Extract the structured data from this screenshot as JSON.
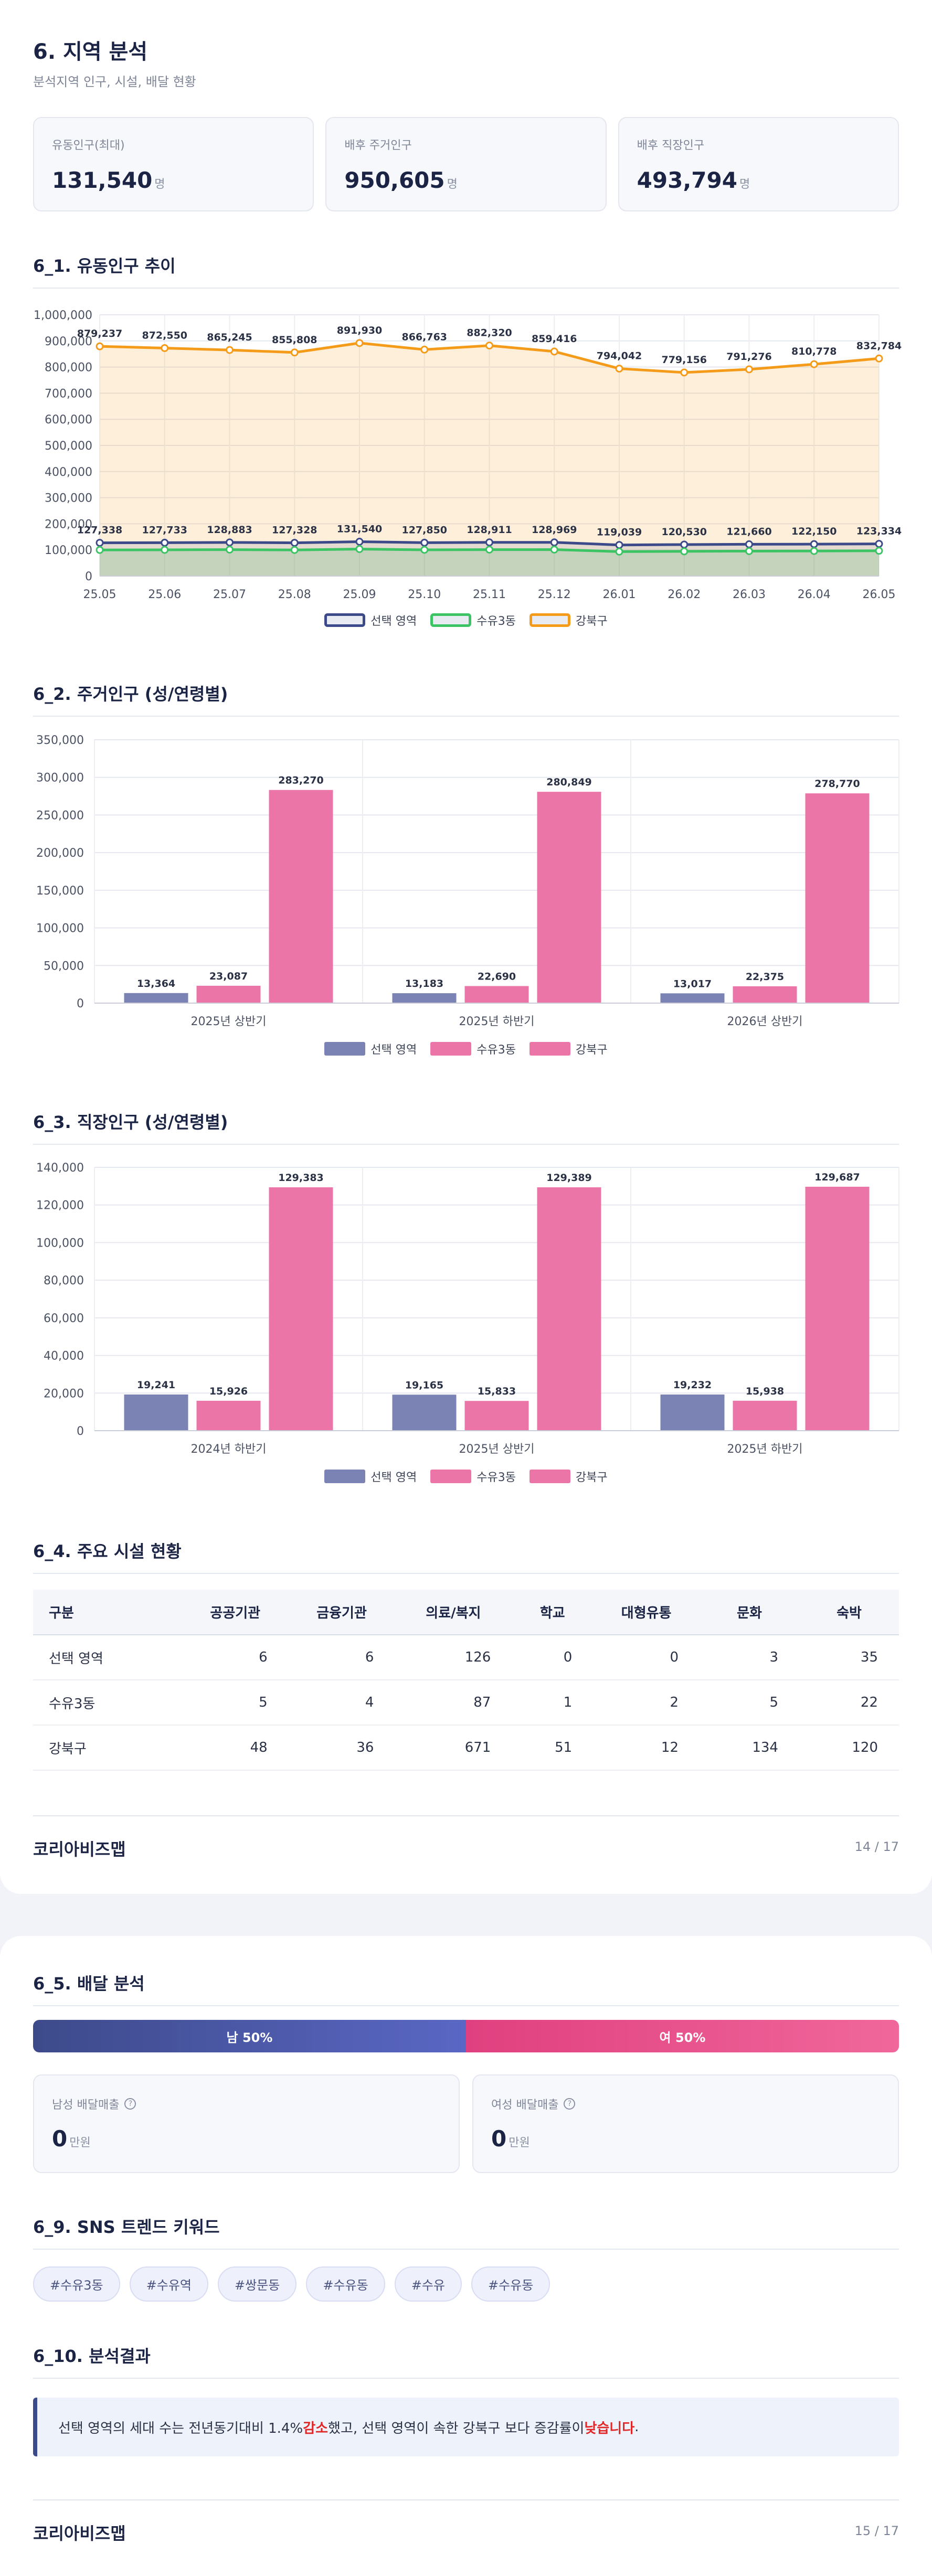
{
  "section_title": "6. 지역 분석",
  "section_subtitle": "분석지역 인구, 시설, 배달 현황",
  "kpis": [
    {
      "label": "유동인구(최대)",
      "value": "131,540",
      "unit": "명"
    },
    {
      "label": "배후 주거인구",
      "value": "950,605",
      "unit": "명"
    },
    {
      "label": "배후 직장인구",
      "value": "493,794",
      "unit": "명"
    }
  ],
  "colors": {
    "navy": "#3d4a8a",
    "green": "#3cc464",
    "orange": "#f59b1a",
    "bar_navy": "#7a83b3",
    "bar_pink": "#ec75a8"
  },
  "sec_6_1": "6_1. 유동인구 추이",
  "sec_6_2": "6_2. 주거인구 (성/연령별)",
  "sec_6_3": "6_3. 직장인구 (성/연령별)",
  "sec_6_4": "6_4. 주요 시설 현황",
  "sec_6_5": "6_5. 배달 분석",
  "sec_6_9": "6_9. SNS 트렌드 키워드",
  "sec_6_10": "6_10. 분석결과",
  "chart_data": [
    {
      "type": "line",
      "x": [
        "25.05",
        "25.06",
        "25.07",
        "25.08",
        "25.09",
        "25.10",
        "25.11",
        "25.12",
        "26.01",
        "26.02",
        "26.03",
        "26.04",
        "26.05"
      ],
      "ylim": [
        0,
        1000000
      ],
      "yticks": [
        "0",
        "100,000",
        "200,000",
        "300,000",
        "400,000",
        "500,000",
        "600,000",
        "700,000",
        "800,000",
        "900,000",
        "1,000,000"
      ],
      "series": [
        {
          "name": "선택 영역",
          "values": [
            127338,
            127733,
            128883,
            127328,
            131540,
            127850,
            128911,
            128969,
            119039,
            120530,
            121660,
            122150,
            123334
          ],
          "labels": [
            "127,338",
            "127,733",
            "128,883",
            "127,328",
            "131,540",
            "127,850",
            "128,911",
            "128,969",
            "119,039",
            "120,530",
            "121,660",
            "122,150",
            "123,334"
          ]
        },
        {
          "name": "수유3동",
          "values": [
            100000,
            100300,
            101200,
            100000,
            103300,
            100400,
            101200,
            101300,
            93500,
            94600,
            95500,
            95900,
            96800
          ],
          "labels": []
        },
        {
          "name": "강북구",
          "values": [
            879237,
            872550,
            865245,
            855808,
            891930,
            866763,
            882320,
            859416,
            794042,
            779156,
            791276,
            810778,
            832784
          ],
          "labels": [
            "879,237",
            "872,550",
            "865,245",
            "855,808",
            "891,930",
            "866,763",
            "882,320",
            "859,416",
            "794,042",
            "779,156",
            "791,276",
            "810,778",
            "832,784"
          ]
        }
      ],
      "grid": true,
      "legend": "bottom"
    },
    {
      "type": "bar",
      "categories": [
        "2025년 상반기",
        "2025년 하반기",
        "2026년 상반기"
      ],
      "ylim": [
        0,
        350000
      ],
      "yticks": [
        "0",
        "50,000",
        "100,000",
        "150,000",
        "200,000",
        "250,000",
        "300,000",
        "350,000"
      ],
      "series": [
        {
          "name": "선택 영역",
          "values": [
            13364,
            13183,
            13017
          ],
          "labels": [
            "13,364",
            "13,183",
            "13,017"
          ]
        },
        {
          "name": "수유3동",
          "values": [
            23087,
            22690,
            22375
          ],
          "labels": [
            "23,087",
            "22,690",
            "22,375"
          ]
        },
        {
          "name": "강북구",
          "values": [
            283270,
            280849,
            278770
          ],
          "labels": [
            "283,270",
            "280,849",
            "278,770"
          ]
        }
      ],
      "grid": true,
      "legend": "bottom"
    },
    {
      "type": "bar",
      "categories": [
        "2024년 하반기",
        "2025년 상반기",
        "2025년 하반기"
      ],
      "ylim": [
        0,
        140000
      ],
      "yticks": [
        "0",
        "20,000",
        "40,000",
        "60,000",
        "80,000",
        "100,000",
        "120,000",
        "140,000"
      ],
      "series": [
        {
          "name": "선택 영역",
          "values": [
            19241,
            19165,
            19232
          ],
          "labels": [
            "19,241",
            "19,165",
            "19,232"
          ]
        },
        {
          "name": "수유3동",
          "values": [
            15926,
            15833,
            15938
          ],
          "labels": [
            "15,926",
            "15,833",
            "15,938"
          ]
        },
        {
          "name": "강북구",
          "values": [
            129383,
            129389,
            129687
          ],
          "labels": [
            "129,383",
            "129,389",
            "129,687"
          ]
        }
      ],
      "grid": true,
      "legend": "bottom"
    }
  ],
  "facilities": {
    "headers": [
      "구분",
      "공공기관",
      "금융기관",
      "의료/복지",
      "학교",
      "대형유통",
      "문화",
      "숙박"
    ],
    "rows": [
      [
        "선택 영역",
        "6",
        "6",
        "126",
        "0",
        "0",
        "3",
        "35"
      ],
      [
        "수유3동",
        "5",
        "4",
        "87",
        "1",
        "2",
        "5",
        "22"
      ],
      [
        "강북구",
        "48",
        "36",
        "671",
        "51",
        "12",
        "134",
        "120"
      ]
    ]
  },
  "footer1": {
    "brand": "코리아비즈맵",
    "page": "14 / 17"
  },
  "footer2": {
    "brand": "코리아비즈맵",
    "page": "15 / 17"
  },
  "delivery": {
    "male_label": "남 50%",
    "female_label": "여 50%",
    "male_share": 0.5,
    "male_sales_label": "남성 배달매출",
    "male_sales_value": "0",
    "male_sales_unit": "만원",
    "female_sales_label": "여성 배달매출",
    "female_sales_value": "0",
    "female_sales_unit": "만원",
    "help_icon": "question-icon"
  },
  "sns_tags": [
    "#수유3동",
    "#수유역",
    "#쌍문동",
    "#수유동",
    "#수유",
    "#수유동"
  ],
  "result": {
    "part1": "선택 영역의 세대 수는 전년동기대비 1.4% ",
    "highlight1": "감소",
    "part2": "했고, 선택 영역이 속한 강북구 보다 증감률이 ",
    "highlight2": "낮습니다",
    "part3": "."
  }
}
